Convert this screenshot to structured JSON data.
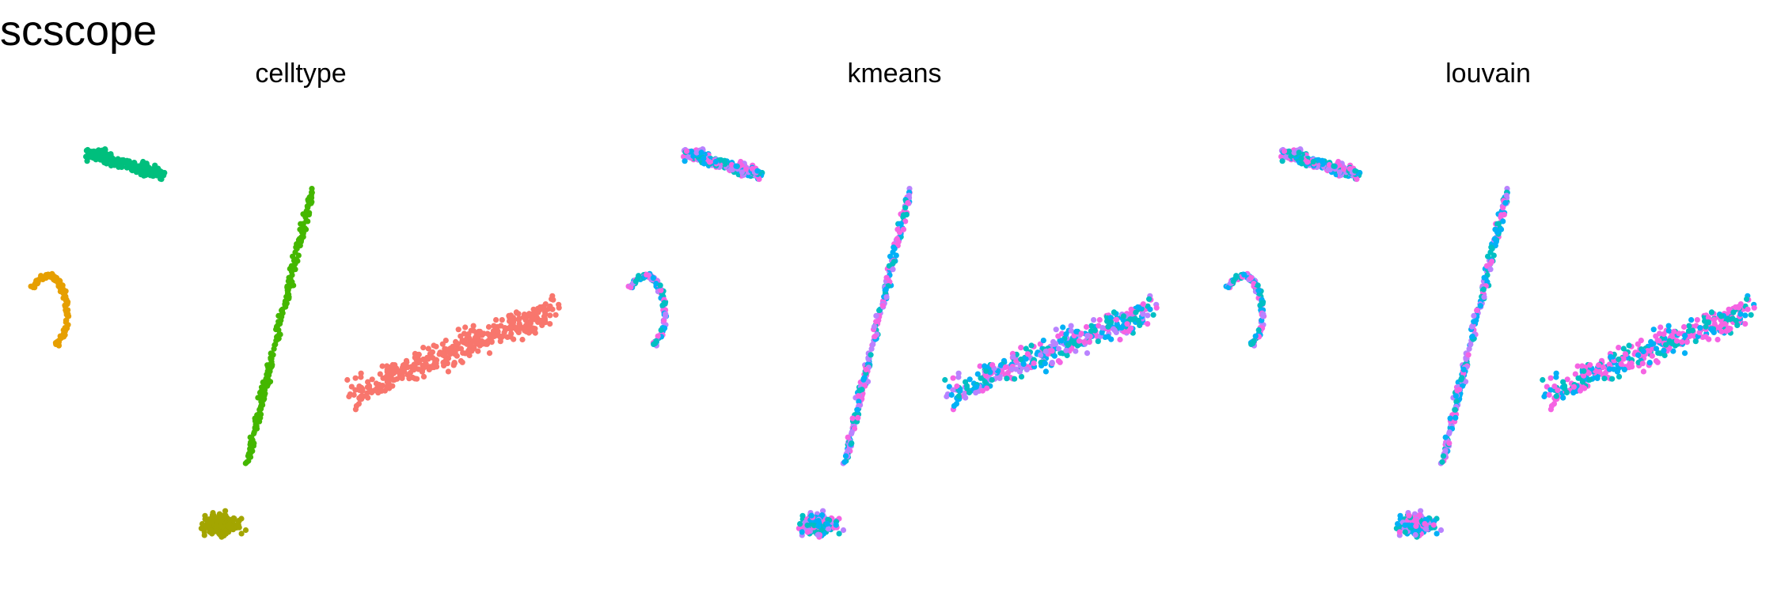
{
  "title": "scscope",
  "palette": {
    "celltype": [
      "#F8766D",
      "#00BF7D",
      "#E69F00",
      "#44B700",
      "#A3A500"
    ],
    "cluster": [
      "#F564E3",
      "#00B0F6",
      "#00BFC4",
      "#B983FF"
    ]
  },
  "chart_data": [
    {
      "type": "scatter",
      "title": "celltype",
      "xlabel": "",
      "ylabel": "",
      "grid": false,
      "legend": "none",
      "xlim": [
        0,
        10
      ],
      "ylim": [
        0,
        10
      ],
      "color_by": "celltype",
      "clusters": [
        {
          "cx": 1.75,
          "cy": 8.55,
          "spread": 0.65,
          "n": 210,
          "shape": "wedge",
          "colors": [
            1
          ]
        },
        {
          "cx": 0.45,
          "cy": 5.5,
          "spread": 0.55,
          "n": 130,
          "shape": "hook",
          "colors": [
            2
          ]
        },
        {
          "cx": 4.6,
          "cy": 5.0,
          "spread": 0.5,
          "n": 240,
          "shape": "streak",
          "colors": [
            3
          ]
        },
        {
          "cx": 8.0,
          "cy": 4.9,
          "spread": 1.4,
          "n": 380,
          "shape": "cloud",
          "colors": [
            0
          ]
        },
        {
          "cx": 3.65,
          "cy": 1.1,
          "spread": 0.6,
          "n": 220,
          "shape": "blob",
          "colors": [
            4
          ]
        }
      ]
    },
    {
      "type": "scatter",
      "title": "kmeans",
      "xlabel": "",
      "ylabel": "",
      "grid": false,
      "legend": "none",
      "xlim": [
        0,
        10
      ],
      "ylim": [
        0,
        10
      ],
      "color_by": "cluster",
      "clusters": [
        {
          "cx": 1.75,
          "cy": 8.55,
          "spread": 0.65,
          "n": 210,
          "shape": "wedge",
          "colors": [
            0,
            1,
            2,
            3
          ]
        },
        {
          "cx": 0.45,
          "cy": 5.5,
          "spread": 0.55,
          "n": 130,
          "shape": "hook",
          "colors": [
            0,
            1,
            2,
            3
          ]
        },
        {
          "cx": 4.6,
          "cy": 5.0,
          "spread": 0.5,
          "n": 240,
          "shape": "streak",
          "colors": [
            0,
            1,
            2,
            3
          ]
        },
        {
          "cx": 8.0,
          "cy": 4.9,
          "spread": 1.4,
          "n": 380,
          "shape": "cloud",
          "colors": [
            1,
            0,
            2,
            3
          ]
        },
        {
          "cx": 3.65,
          "cy": 1.1,
          "spread": 0.6,
          "n": 220,
          "shape": "blob",
          "colors": [
            1,
            0,
            2,
            3
          ]
        }
      ]
    },
    {
      "type": "scatter",
      "title": "louvain",
      "xlabel": "",
      "ylabel": "",
      "grid": false,
      "legend": "none",
      "xlim": [
        0,
        10
      ],
      "ylim": [
        0,
        10
      ],
      "color_by": "cluster",
      "clusters": [
        {
          "cx": 1.75,
          "cy": 8.55,
          "spread": 0.65,
          "n": 210,
          "shape": "wedge",
          "colors": [
            0,
            2,
            1,
            3
          ]
        },
        {
          "cx": 0.45,
          "cy": 5.5,
          "spread": 0.55,
          "n": 130,
          "shape": "hook",
          "colors": [
            1,
            0,
            2,
            3
          ]
        },
        {
          "cx": 4.6,
          "cy": 5.0,
          "spread": 0.5,
          "n": 240,
          "shape": "streak",
          "colors": [
            1,
            2,
            0,
            3
          ]
        },
        {
          "cx": 8.0,
          "cy": 4.9,
          "spread": 1.4,
          "n": 380,
          "shape": "cloud",
          "colors": [
            0,
            0,
            2,
            1
          ]
        },
        {
          "cx": 3.65,
          "cy": 1.1,
          "spread": 0.6,
          "n": 220,
          "shape": "blob",
          "colors": [
            0,
            2,
            1,
            3
          ]
        }
      ]
    }
  ]
}
